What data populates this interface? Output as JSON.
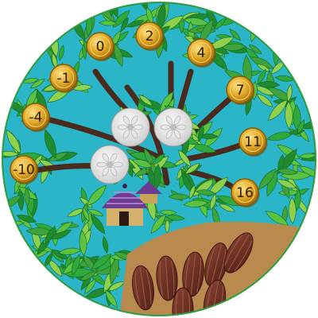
{
  "coins": [
    {
      "label": "0",
      "value": 0
    },
    {
      "label": "2",
      "value": 2
    },
    {
      "label": "-1",
      "value": -1
    },
    {
      "label": "4",
      "value": 4
    },
    {
      "label": "7",
      "value": 7
    },
    {
      "label": "-4",
      "value": -4
    },
    {
      "label": "11",
      "value": 11
    },
    {
      "label": "-10",
      "value": -10
    },
    {
      "label": "16",
      "value": 16
    }
  ],
  "stones": [
    "white-stone",
    "white-stone",
    "white-stone"
  ],
  "pods_count": 7,
  "colors": {
    "water": "#2bb5c9",
    "ring": "#2e9b3b",
    "leaf_dark": "#1f8a2f",
    "leaf_light": "#8fd14f",
    "branch": "#4a2a1c",
    "ground": "#b98a4e",
    "coin": "#d6a01c",
    "pod": "#6a2f22",
    "hut_roof": "#6b3c8f"
  }
}
